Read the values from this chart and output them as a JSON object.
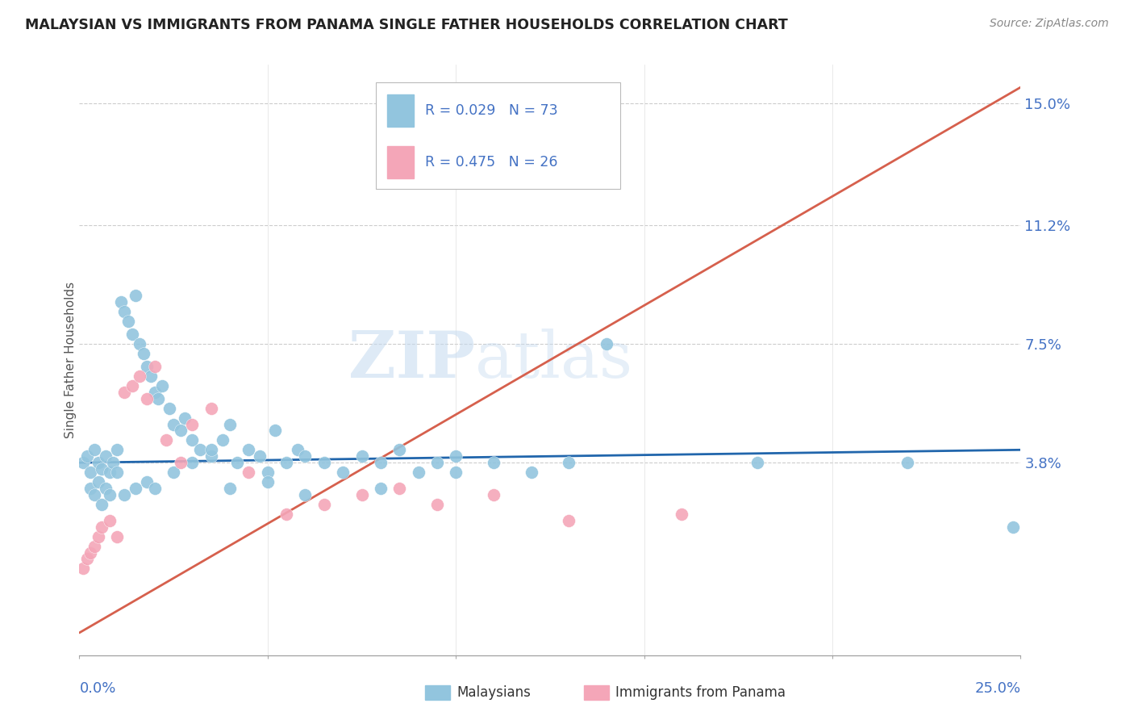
{
  "title": "MALAYSIAN VS IMMIGRANTS FROM PANAMA SINGLE FATHER HOUSEHOLDS CORRELATION CHART",
  "source": "Source: ZipAtlas.com",
  "ylabel": "Single Father Households",
  "color_blue": "#92c5de",
  "color_pink": "#f4a6b8",
  "color_blue_line": "#2166ac",
  "color_pink_line": "#d6604d",
  "color_axis_labels": "#4472c4",
  "watermark_color": "#dce9f5",
  "xmin": 0.0,
  "xmax": 0.25,
  "ymin": -0.022,
  "ymax": 0.162,
  "ytick_vals": [
    0.038,
    0.075,
    0.112,
    0.15
  ],
  "ytick_labels": [
    "3.8%",
    "7.5%",
    "11.2%",
    "15.0%"
  ],
  "legend_r1": "R = 0.029",
  "legend_n1": "N = 73",
  "legend_r2": "R = 0.475",
  "legend_n2": "N = 26",
  "blue_line_x": [
    0.0,
    0.25
  ],
  "blue_line_y": [
    0.038,
    0.042
  ],
  "pink_line_x": [
    0.0,
    0.25
  ],
  "pink_line_y": [
    -0.015,
    0.155
  ],
  "malaysian_x": [
    0.001,
    0.002,
    0.003,
    0.004,
    0.005,
    0.006,
    0.007,
    0.008,
    0.009,
    0.01,
    0.011,
    0.012,
    0.013,
    0.014,
    0.015,
    0.016,
    0.017,
    0.018,
    0.019,
    0.02,
    0.021,
    0.022,
    0.024,
    0.025,
    0.027,
    0.028,
    0.03,
    0.032,
    0.035,
    0.038,
    0.04,
    0.042,
    0.045,
    0.048,
    0.05,
    0.052,
    0.055,
    0.058,
    0.06,
    0.065,
    0.07,
    0.075,
    0.08,
    0.085,
    0.09,
    0.095,
    0.1,
    0.11,
    0.12,
    0.13,
    0.003,
    0.004,
    0.005,
    0.006,
    0.007,
    0.008,
    0.01,
    0.012,
    0.015,
    0.018,
    0.02,
    0.025,
    0.03,
    0.035,
    0.04,
    0.05,
    0.06,
    0.08,
    0.1,
    0.14,
    0.18,
    0.22,
    0.248
  ],
  "malaysian_y": [
    0.038,
    0.04,
    0.035,
    0.042,
    0.038,
    0.036,
    0.04,
    0.035,
    0.038,
    0.042,
    0.088,
    0.085,
    0.082,
    0.078,
    0.09,
    0.075,
    0.072,
    0.068,
    0.065,
    0.06,
    0.058,
    0.062,
    0.055,
    0.05,
    0.048,
    0.052,
    0.045,
    0.042,
    0.04,
    0.045,
    0.05,
    0.038,
    0.042,
    0.04,
    0.035,
    0.048,
    0.038,
    0.042,
    0.04,
    0.038,
    0.035,
    0.04,
    0.038,
    0.042,
    0.035,
    0.038,
    0.04,
    0.038,
    0.035,
    0.038,
    0.03,
    0.028,
    0.032,
    0.025,
    0.03,
    0.028,
    0.035,
    0.028,
    0.03,
    0.032,
    0.03,
    0.035,
    0.038,
    0.042,
    0.03,
    0.032,
    0.028,
    0.03,
    0.035,
    0.075,
    0.038,
    0.038,
    0.018
  ],
  "panama_x": [
    0.001,
    0.002,
    0.003,
    0.004,
    0.005,
    0.006,
    0.008,
    0.01,
    0.012,
    0.014,
    0.016,
    0.018,
    0.02,
    0.023,
    0.027,
    0.03,
    0.035,
    0.045,
    0.055,
    0.065,
    0.075,
    0.085,
    0.095,
    0.11,
    0.13,
    0.16
  ],
  "panama_y": [
    0.005,
    0.008,
    0.01,
    0.012,
    0.015,
    0.018,
    0.02,
    0.015,
    0.06,
    0.062,
    0.065,
    0.058,
    0.068,
    0.045,
    0.038,
    0.05,
    0.055,
    0.035,
    0.022,
    0.025,
    0.028,
    0.03,
    0.025,
    0.028,
    0.02,
    0.022
  ]
}
